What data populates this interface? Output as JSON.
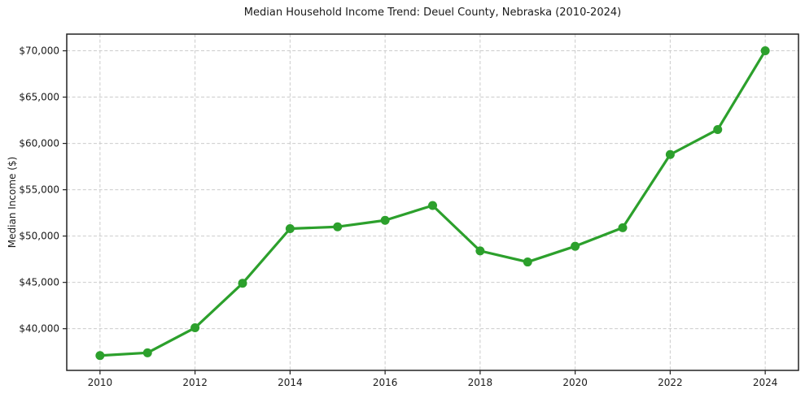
{
  "chart_data": {
    "type": "line",
    "title": "Median Household Income Trend: Deuel County, Nebraska (2010-2024)",
    "xlabel": "",
    "ylabel": "Median Income ($)",
    "x": [
      2010,
      2011,
      2012,
      2013,
      2014,
      2015,
      2016,
      2017,
      2018,
      2019,
      2020,
      2021,
      2022,
      2023,
      2024
    ],
    "values": [
      37100,
      37400,
      40100,
      44900,
      50800,
      51000,
      51700,
      53300,
      48400,
      47200,
      48900,
      50900,
      58800,
      61500,
      70000
    ],
    "series_name": "Median Household Income",
    "xlim": [
      2009.3,
      2024.7
    ],
    "ylim": [
      35500,
      71800
    ],
    "xticks": [
      2010,
      2012,
      2014,
      2016,
      2018,
      2020,
      2022,
      2024
    ],
    "xtick_labels": [
      "2010",
      "2012",
      "2014",
      "2016",
      "2018",
      "2020",
      "2022",
      "2024"
    ],
    "yticks": [
      40000,
      45000,
      50000,
      55000,
      60000,
      65000,
      70000
    ],
    "ytick_labels": [
      "$40,000",
      "$45,000",
      "$50,000",
      "$55,000",
      "$60,000",
      "$65,000",
      "$70,000"
    ],
    "grid": true,
    "grid_style": "dashed",
    "legend": false,
    "marker": "circle",
    "colors": {
      "line": "#2ca02c",
      "marker": "#2ca02c",
      "grid": "#cbcbcb",
      "axis": "#222222",
      "text": "#1a1a1a",
      "background": "#ffffff"
    }
  }
}
